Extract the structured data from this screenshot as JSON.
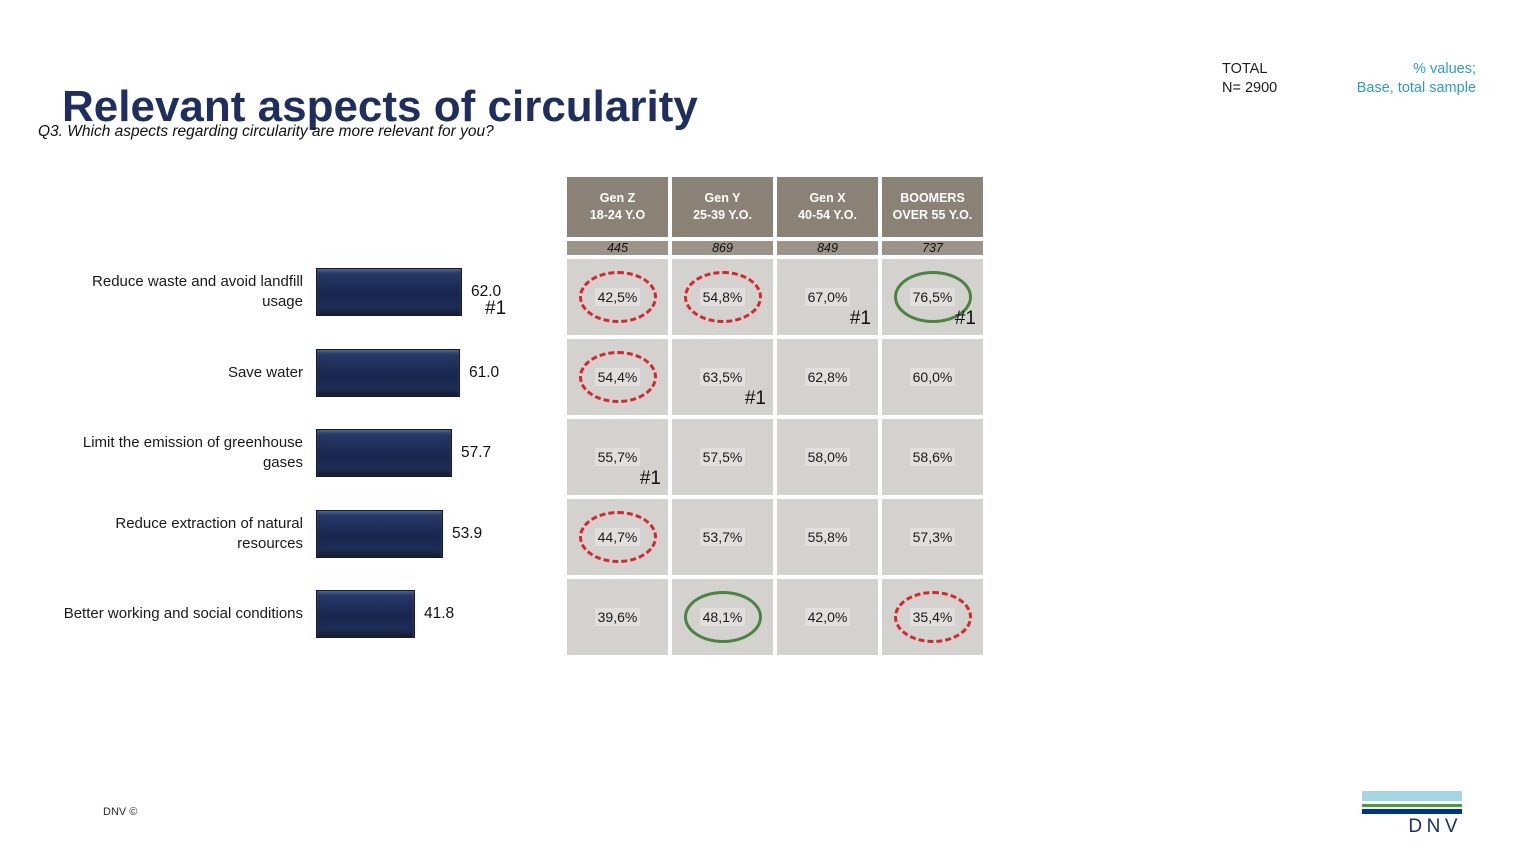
{
  "header": {
    "title": "Relevant aspects of circularity",
    "question": "Q3. Which aspects regarding circularity are more relevant for you?",
    "total_label": "TOTAL",
    "total_value": "N= 2900",
    "note_line1": "% values;",
    "note_line2": "Base, total sample"
  },
  "footer": {
    "copyright": "DNV ©",
    "logo_text": "DNV"
  },
  "colors": {
    "title_text": "#1E2F5F",
    "accent_blue": "#2E9BD0",
    "bar_navy": "#1B2A5B",
    "header_bg": "#8B8277",
    "counts_bg": "#9C948A",
    "cell_bg": "#D3D2CE",
    "circle_red": "#D8262C",
    "circle_green": "#4A8440",
    "logo_light_blue": "#A5D6E4",
    "logo_green": "#4C9C30",
    "logo_dark_blue": "#00338D"
  },
  "chart_data": [
    {
      "type": "bar",
      "orientation": "horizontal",
      "title": "Relevant aspects of circularity",
      "categories": [
        "Reduce waste and avoid landfill usage",
        "Save water",
        "Limit the emission of greenhouse gases",
        "Reduce extraction of natural resources",
        "Better working and social conditions"
      ],
      "values": [
        62.0,
        61.0,
        57.7,
        53.9,
        41.8
      ],
      "value_labels": [
        "62.0",
        "61.0",
        "57.7",
        "53.9",
        "41.8"
      ],
      "rank_labels": [
        "#1",
        "",
        "",
        "",
        ""
      ],
      "xlabel": "",
      "ylabel": "",
      "xlim": [
        0,
        70
      ],
      "gridlines": false,
      "legend": false,
      "bar_color": "#1B2A5B"
    },
    {
      "type": "table",
      "columns": [
        {
          "name": "Gen Z",
          "age": "18-24 Y.O",
          "base": "445"
        },
        {
          "name": "Gen Y",
          "age": "25-39 Y.O.",
          "base": "869"
        },
        {
          "name": "Gen X",
          "age": "40-54 Y.O.",
          "base": "849"
        },
        {
          "name": "BOOMERS",
          "age": "OVER 55 Y.O.",
          "base": "737"
        }
      ],
      "rows": [
        {
          "cells": [
            {
              "value": "42,5%",
              "circle": "red-dashed"
            },
            {
              "value": "54,8%",
              "circle": "red-dashed"
            },
            {
              "value": "67,0%",
              "rank": "#1"
            },
            {
              "value": "76,5%",
              "circle": "green-solid",
              "rank": "#1"
            }
          ]
        },
        {
          "cells": [
            {
              "value": "54,4%",
              "circle": "red-dashed"
            },
            {
              "value": "63,5%",
              "rank": "#1"
            },
            {
              "value": "62,8%"
            },
            {
              "value": "60,0%"
            }
          ]
        },
        {
          "cells": [
            {
              "value": "55,7%",
              "rank": "#1"
            },
            {
              "value": "57,5%"
            },
            {
              "value": "58,0%"
            },
            {
              "value": "58,6%"
            }
          ]
        },
        {
          "cells": [
            {
              "value": "44,7%",
              "circle": "red-dashed"
            },
            {
              "value": "53,7%"
            },
            {
              "value": "55,8%"
            },
            {
              "value": "57,3%"
            }
          ]
        },
        {
          "cells": [
            {
              "value": "39,6%"
            },
            {
              "value": "48,1%",
              "circle": "green-solid"
            },
            {
              "value": "42,0%"
            },
            {
              "value": "35,4%",
              "circle": "red-dashed"
            }
          ]
        }
      ]
    }
  ]
}
